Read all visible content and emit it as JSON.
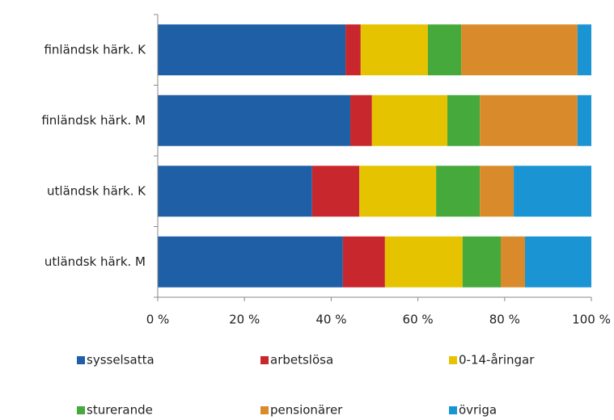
{
  "chart_data": {
    "type": "stacked_bar_horizontal",
    "categories": [
      "finländsk härk.  K",
      "finländsk härk.  M",
      "utländsk härk.  K",
      "utländsk härk.  M"
    ],
    "series": [
      {
        "name": "sysselsatta",
        "color": "#1f5fa6",
        "values": [
          43.3,
          44.4,
          35.6,
          42.7
        ]
      },
      {
        "name": "arbetslösa",
        "color": "#c8282d",
        "values": [
          3.5,
          5.0,
          10.9,
          9.7
        ]
      },
      {
        "name": "0-14-åringar",
        "color": "#e6c300",
        "values": [
          15.5,
          17.4,
          17.7,
          17.9
        ]
      },
      {
        "name": "sturerande",
        "color": "#45a93b",
        "values": [
          7.7,
          7.5,
          10.1,
          8.8
        ]
      },
      {
        "name": "pensionärer",
        "color": "#d98b2b",
        "values": [
          26.8,
          22.5,
          7.8,
          5.6
        ]
      },
      {
        "name": "övriga",
        "color": "#1a94d2",
        "values": [
          3.2,
          3.2,
          17.9,
          15.3
        ]
      }
    ],
    "xlim": [
      0,
      100
    ],
    "xticks": [
      {
        "value": 0,
        "label": "0 %"
      },
      {
        "value": 20,
        "label": "20 %"
      },
      {
        "value": 40,
        "label": "40 %"
      },
      {
        "value": 60,
        "label": "60 %"
      },
      {
        "value": 80,
        "label": "80 %"
      },
      {
        "value": 100,
        "label": "100 %"
      }
    ],
    "legend": "bottom"
  }
}
